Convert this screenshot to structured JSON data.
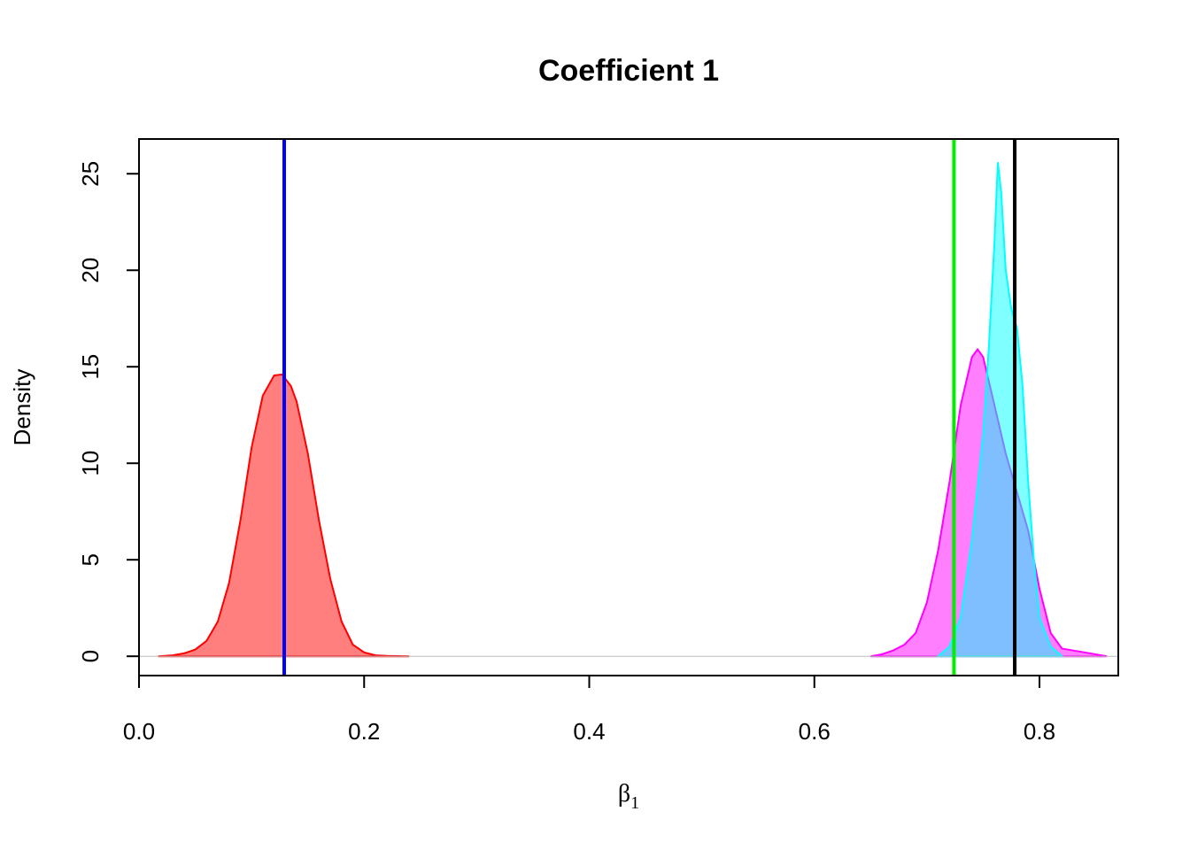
{
  "chart_data": {
    "type": "area",
    "title": "Coefficient 1",
    "xlabel": "β",
    "xlabel_subscript": "1",
    "ylabel": "Density",
    "xlim": [
      0.0,
      0.87
    ],
    "ylim": [
      -1.0,
      26.8
    ],
    "x_ticks": [
      0.0,
      0.2,
      0.4,
      0.6,
      0.8
    ],
    "x_tick_labels": [
      "0.0",
      "0.2",
      "0.4",
      "0.6",
      "0.8"
    ],
    "y_ticks": [
      0,
      5,
      10,
      15,
      20,
      25
    ],
    "y_tick_labels": [
      "0",
      "5",
      "10",
      "15",
      "20",
      "25"
    ],
    "grid": false,
    "series": [
      {
        "fill": "rgba(255,0,0,0.5)",
        "stroke": "#ff0000",
        "x": [
          0.017,
          0.03,
          0.04,
          0.05,
          0.06,
          0.07,
          0.08,
          0.09,
          0.1,
          0.11,
          0.12,
          0.127,
          0.135,
          0.14,
          0.15,
          0.16,
          0.17,
          0.18,
          0.19,
          0.2,
          0.21,
          0.22,
          0.24
        ],
        "y": [
          0.0,
          0.05,
          0.15,
          0.35,
          0.8,
          1.8,
          3.8,
          7.0,
          10.8,
          13.5,
          14.55,
          14.6,
          14.0,
          13.2,
          10.5,
          7.0,
          4.0,
          1.8,
          0.6,
          0.2,
          0.05,
          0.02,
          0.0
        ]
      },
      {
        "fill": "rgba(255,0,255,0.5)",
        "stroke": "#ff00ff",
        "x": [
          0.65,
          0.66,
          0.67,
          0.68,
          0.69,
          0.7,
          0.71,
          0.72,
          0.73,
          0.74,
          0.745,
          0.75,
          0.76,
          0.77,
          0.78,
          0.79,
          0.8,
          0.81,
          0.82,
          0.83,
          0.84,
          0.86
        ],
        "y": [
          0.0,
          0.1,
          0.3,
          0.6,
          1.2,
          2.8,
          5.5,
          9.0,
          13.0,
          15.5,
          15.9,
          15.5,
          13.0,
          10.5,
          8.5,
          6.5,
          3.5,
          1.2,
          0.4,
          0.3,
          0.2,
          0.0
        ]
      },
      {
        "fill": "rgba(0,255,255,0.5)",
        "stroke": "#00ffff",
        "x": [
          0.71,
          0.72,
          0.73,
          0.74,
          0.75,
          0.755,
          0.76,
          0.763,
          0.766,
          0.77,
          0.775,
          0.78,
          0.785,
          0.79,
          0.795,
          0.8,
          0.81,
          0.82
        ],
        "y": [
          0.0,
          0.5,
          2.0,
          6.0,
          11.5,
          16.0,
          21.5,
          25.6,
          24.0,
          20.0,
          18.0,
          17.0,
          14.0,
          9.0,
          5.0,
          2.0,
          0.5,
          0.0
        ]
      }
    ],
    "vertical_lines": [
      {
        "x": 0.129,
        "color": "#0000ff"
      },
      {
        "x": 0.724,
        "color": "#00ee00"
      },
      {
        "x": 0.778,
        "color": "#000000"
      }
    ]
  }
}
